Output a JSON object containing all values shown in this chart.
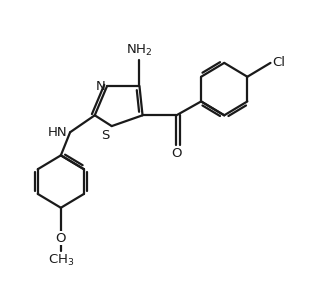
{
  "background_color": "#ffffff",
  "line_color": "#1a1a1a",
  "line_width": 1.6,
  "font_size": 9.5,
  "figsize": [
    3.19,
    2.83
  ],
  "dpi": 100,
  "xlim": [
    0.0,
    9.5
  ],
  "ylim": [
    0.5,
    9.5
  ]
}
